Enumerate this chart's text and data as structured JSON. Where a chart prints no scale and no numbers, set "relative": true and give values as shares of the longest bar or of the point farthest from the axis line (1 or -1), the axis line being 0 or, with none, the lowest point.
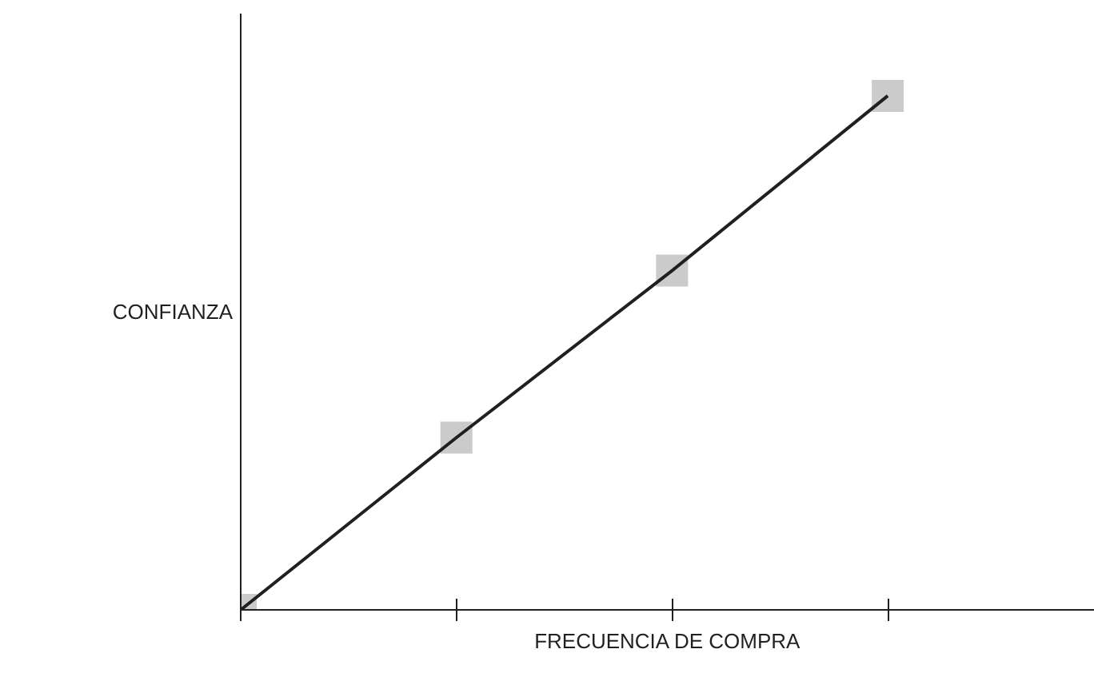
{
  "chart_data": {
    "type": "line",
    "xlabel": "FRECUENCIA DE COMPRA",
    "ylabel": "CONFIANZA",
    "categories": [
      null,
      null,
      null,
      null
    ],
    "relative": true,
    "marker": "square",
    "grid": false,
    "series": [
      {
        "color": "#231f20",
        "values": [
          0,
          0.335,
          0.66,
          1
        ]
      }
    ]
  }
}
